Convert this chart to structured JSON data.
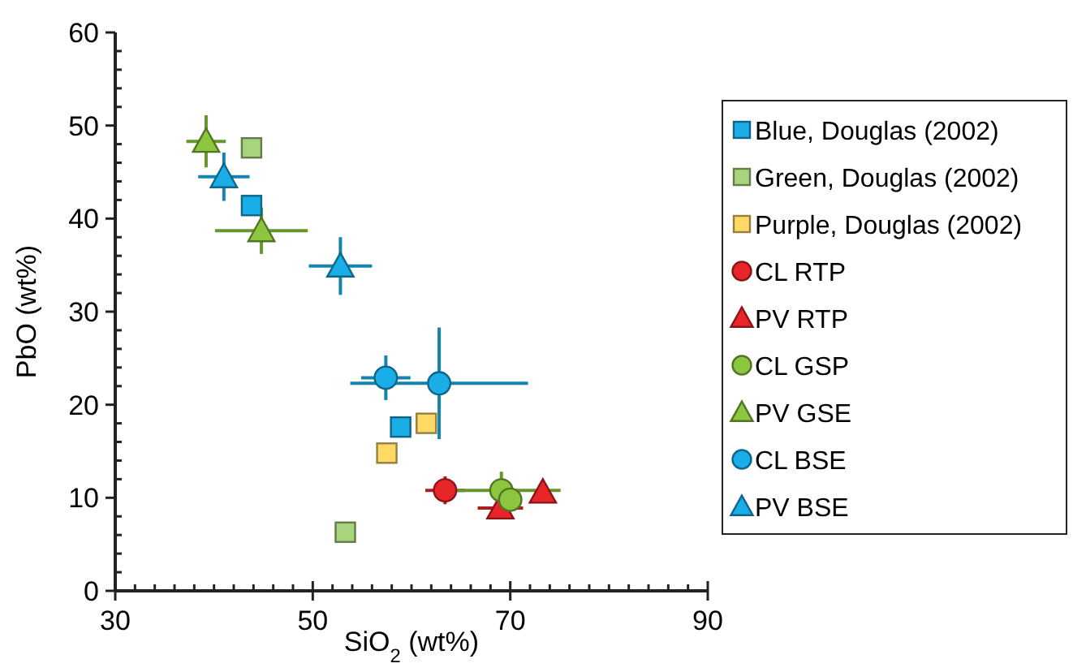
{
  "chart_data": {
    "type": "scatter",
    "xlabel": "SiO$_{2}$ (wt%)",
    "ylabel": "PbO (wt%)",
    "xlim": [
      30,
      90
    ],
    "ylim": [
      0,
      60
    ],
    "xticks": [
      30,
      {
        "value": 32,
        "label": null
      },
      {
        "value": 34,
        "label": null
      },
      {
        "value": 36,
        "label": null
      },
      {
        "value": 38,
        "label": null
      },
      {
        "value": 40,
        "label": null
      },
      {
        "value": 42,
        "label": null
      },
      {
        "value": 44,
        "label": null
      },
      {
        "value": 46,
        "label": null
      },
      {
        "value": 48,
        "label": null
      },
      50,
      {
        "value": 52,
        "label": null
      },
      {
        "value": 54,
        "label": null
      },
      {
        "value": 56,
        "label": null
      },
      {
        "value": 58,
        "label": null
      },
      {
        "value": 60,
        "label": null
      },
      {
        "value": 62,
        "label": null
      },
      {
        "value": 64,
        "label": null
      },
      {
        "value": 66,
        "label": null
      },
      {
        "value": 68,
        "label": null
      },
      70,
      {
        "value": 72,
        "label": null
      },
      {
        "value": 74,
        "label": null
      },
      {
        "value": 76,
        "label": null
      },
      {
        "value": 78,
        "label": null
      },
      {
        "value": 80,
        "label": null
      },
      {
        "value": 82,
        "label": null
      },
      {
        "value": 84,
        "label": null
      },
      {
        "value": 86,
        "label": null
      },
      {
        "value": 88,
        "label": null
      },
      90
    ],
    "yticks": [
      0,
      {
        "value": 2,
        "label": null
      },
      {
        "value": 4,
        "label": null
      },
      {
        "value": 6,
        "label": null
      },
      {
        "value": 8,
        "label": null
      },
      10,
      {
        "value": 12,
        "label": null
      },
      {
        "value": 14,
        "label": null
      },
      {
        "value": 16,
        "label": null
      },
      {
        "value": 18,
        "label": null
      },
      20,
      {
        "value": 22,
        "label": null
      },
      {
        "value": 24,
        "label": null
      },
      {
        "value": 26,
        "label": null
      },
      {
        "value": 28,
        "label": null
      },
      30,
      {
        "value": 32,
        "label": null
      },
      {
        "value": 34,
        "label": null
      },
      {
        "value": 36,
        "label": null
      },
      {
        "value": 38,
        "label": null
      },
      40,
      {
        "value": 42,
        "label": null
      },
      {
        "value": 44,
        "label": null
      },
      {
        "value": 46,
        "label": null
      },
      {
        "value": 48,
        "label": null
      },
      50,
      {
        "value": 52,
        "label": null
      },
      {
        "value": 54,
        "label": null
      },
      {
        "value": 56,
        "label": null
      },
      {
        "value": 58,
        "label": null
      },
      60
    ],
    "legend": "right",
    "grid": false,
    "series": [
      {
        "name": "Blue, Douglas (2002)",
        "color": "#1aaee8",
        "marker": "square",
        "x": [
          43.8,
          58.9
        ],
        "values": [
          41.4,
          17.6
        ]
      },
      {
        "name": "Green, Douglas (2002)",
        "color": "#a9d47e",
        "marker": "square",
        "x": [
          43.8,
          53.3
        ],
        "values": [
          47.6,
          6.3
        ]
      },
      {
        "name": "Purple, Douglas (2002)",
        "color": "#ffd966",
        "marker": "square",
        "x": [
          61.5,
          57.5
        ],
        "values": [
          18.0,
          14.8
        ]
      },
      {
        "name": "CL RTP",
        "color": "#e8262a",
        "marker": "circle",
        "x": [
          63.4
        ],
        "values": [
          10.8
        ],
        "errors": [
          1.5
        ],
        "xerrors": [
          2.0
        ]
      },
      {
        "name": "PV RTP",
        "color": "#e8262a",
        "marker": "triangle",
        "x": [
          69.0,
          73.3
        ],
        "values": [
          8.9,
          10.6
        ],
        "errors": [
          null,
          null
        ],
        "xerrors": [
          2.3,
          null
        ]
      },
      {
        "name": "CL GSP",
        "color": "#8cc63f",
        "marker": "circle",
        "x": [
          69.1,
          70.0
        ],
        "values": [
          10.8,
          9.8
        ],
        "errors": [
          2.0,
          null
        ],
        "xerrors": [
          6.0,
          null
        ]
      },
      {
        "name": "PV GSE",
        "color": "#8cc63f",
        "marker": "triangle",
        "x": [
          39.2,
          44.8
        ],
        "values": [
          48.3,
          38.7
        ],
        "errors": [
          2.8,
          2.5
        ],
        "xerrors": [
          2.0,
          4.7
        ]
      },
      {
        "name": "CL BSE",
        "color": "#1aaee8",
        "marker": "circle",
        "x": [
          57.4,
          62.8
        ],
        "values": [
          22.9,
          22.3
        ],
        "errors": [
          2.4,
          6.0
        ],
        "xerrors": [
          2.5,
          9.0
        ]
      },
      {
        "name": "PV BSE",
        "color": "#1aaee8",
        "marker": "triangle",
        "x": [
          41.0,
          52.8
        ],
        "values": [
          44.5,
          34.9
        ],
        "errors": [
          2.6,
          3.1
        ],
        "xerrors": [
          2.6,
          3.2
        ]
      }
    ]
  }
}
